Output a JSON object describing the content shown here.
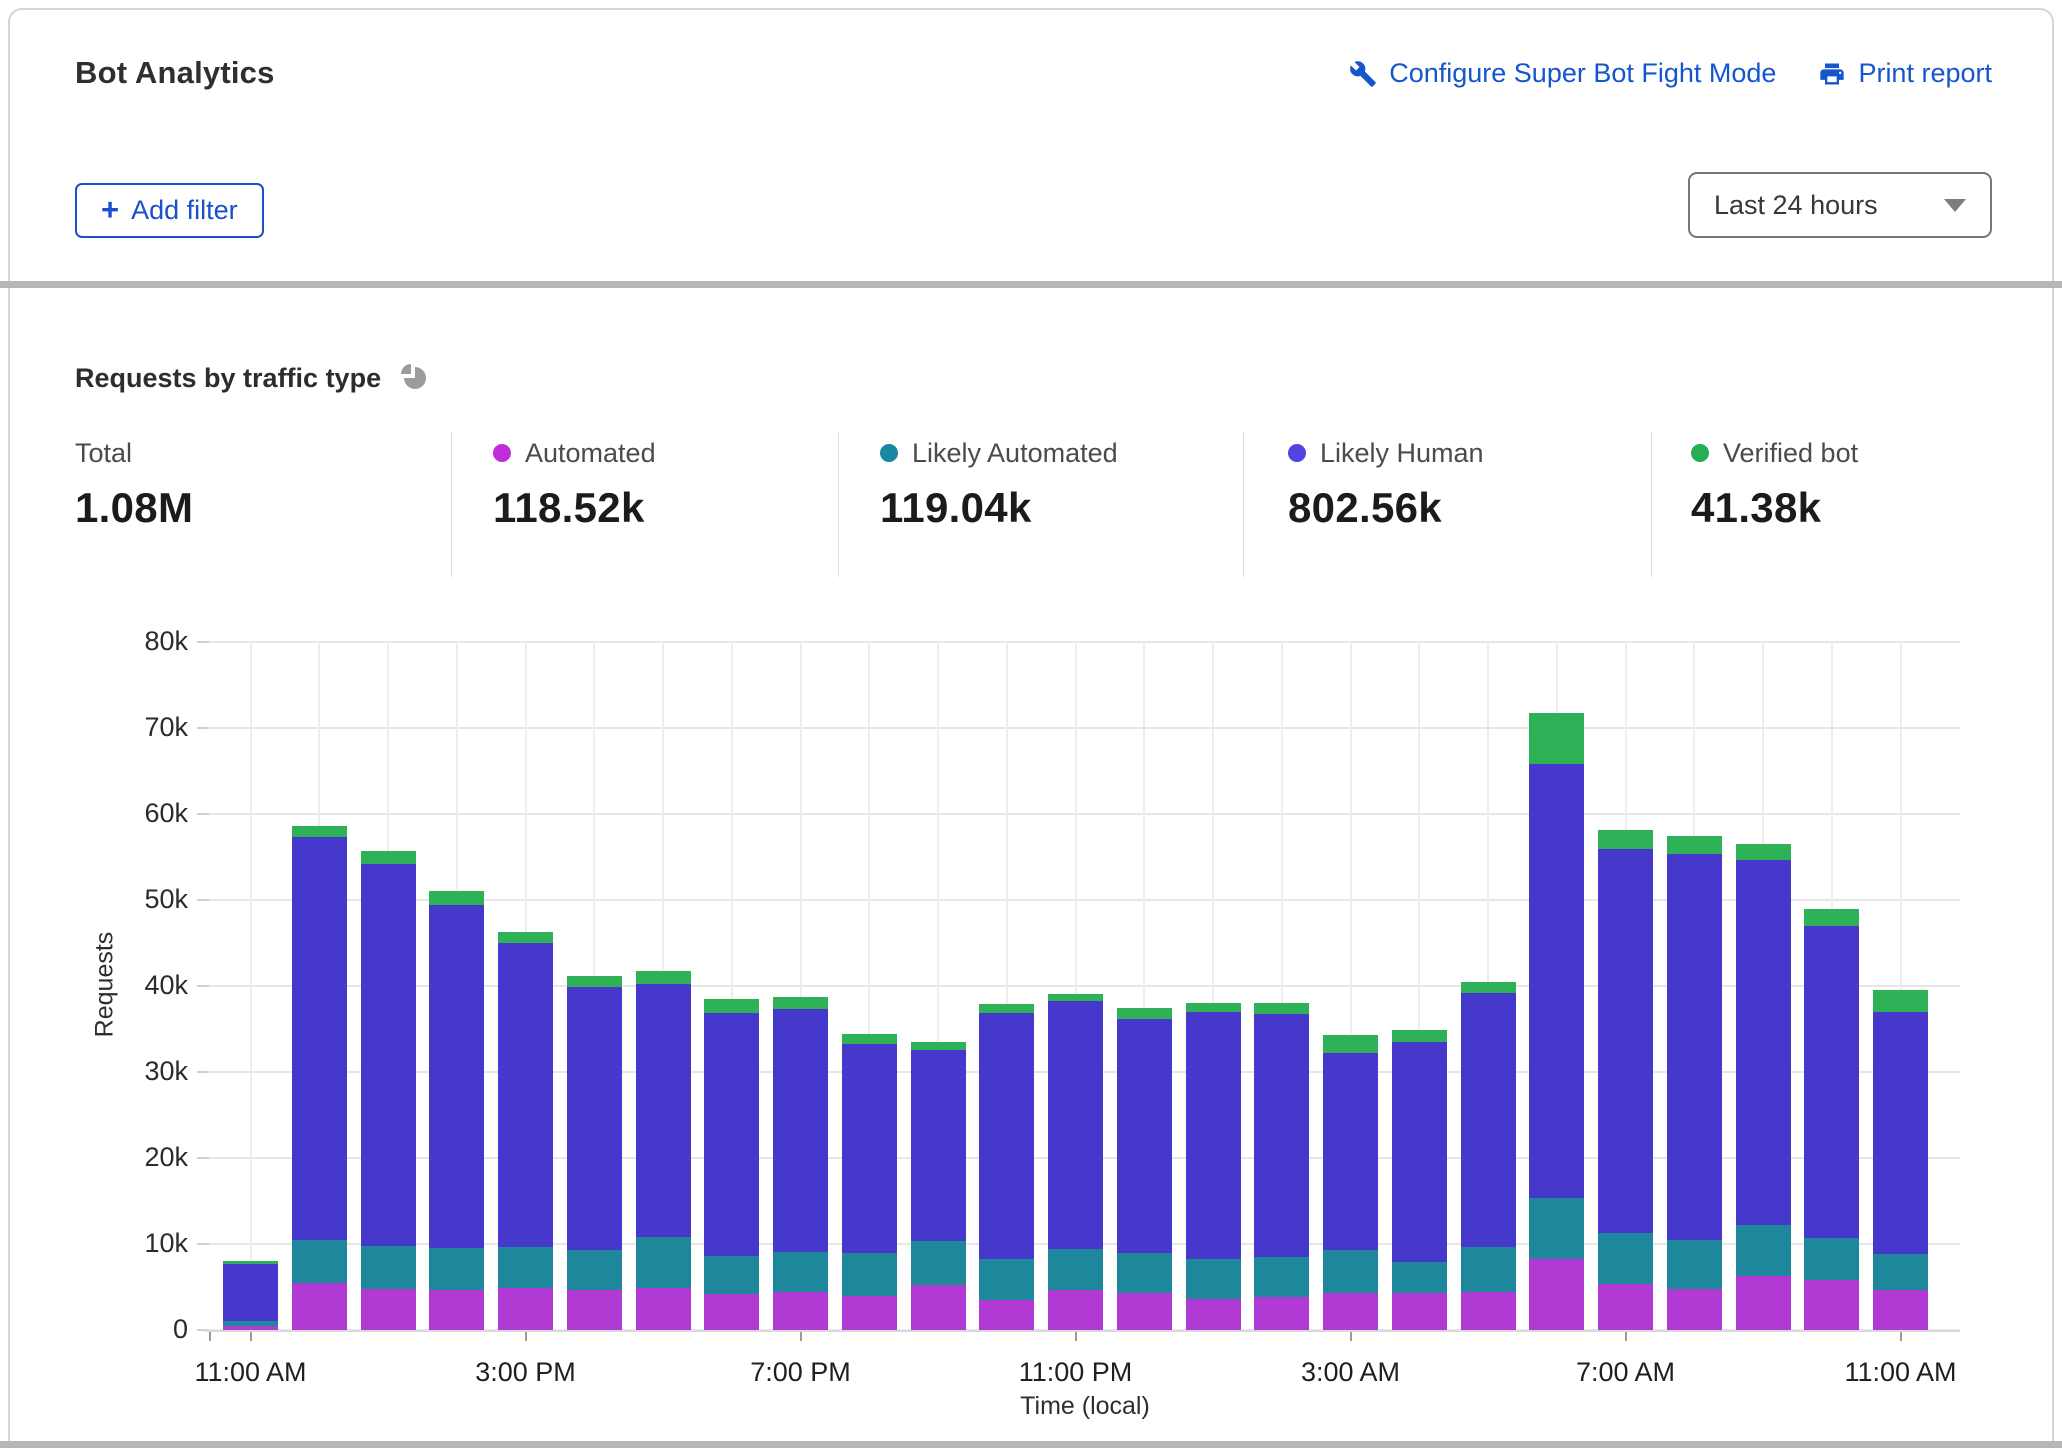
{
  "header": {
    "title": "Bot Analytics",
    "configure_link": "Configure Super Bot Fight Mode",
    "print_link": "Print report",
    "add_filter_label": "Add filter",
    "add_filter_plus": "+",
    "time_range_value": "Last 24 hours"
  },
  "section": {
    "title": "Requests by traffic type"
  },
  "stats": {
    "items": [
      {
        "label": "Total",
        "value": "1.08M",
        "color": null
      },
      {
        "label": "Automated",
        "value": "118.52k",
        "color": "#c02dd8"
      },
      {
        "label": "Likely Automated",
        "value": "119.04k",
        "color": "#1a87a0"
      },
      {
        "label": "Likely Human",
        "value": "802.56k",
        "color": "#5244e0"
      },
      {
        "label": "Verified bot",
        "value": "41.38k",
        "color": "#27ae55"
      }
    ]
  },
  "chart_data": {
    "type": "bar",
    "stacked": true,
    "title": "Requests by traffic type",
    "xlabel": "Time (local)",
    "ylabel": "Requests",
    "ylim": [
      0,
      80000
    ],
    "grid": true,
    "values_unit": "thousands of requests",
    "y_ticks": [
      {
        "label": "0",
        "value": 0
      },
      {
        "label": "10k",
        "value": 10
      },
      {
        "label": "20k",
        "value": 20
      },
      {
        "label": "30k",
        "value": 30
      },
      {
        "label": "40k",
        "value": 40
      },
      {
        "label": "50k",
        "value": 50
      },
      {
        "label": "60k",
        "value": 60
      },
      {
        "label": "70k",
        "value": 70
      },
      {
        "label": "80k",
        "value": 80
      }
    ],
    "categories": [
      "11:00 AM",
      "12:00 PM",
      "1:00 PM",
      "2:00 PM",
      "3:00 PM",
      "4:00 PM",
      "5:00 PM",
      "6:00 PM",
      "7:00 PM",
      "8:00 PM",
      "9:00 PM",
      "10:00 PM",
      "11:00 PM",
      "12:00 AM",
      "1:00 AM",
      "2:00 AM",
      "3:00 AM",
      "4:00 AM",
      "5:00 AM",
      "6:00 AM",
      "7:00 AM",
      "8:00 AM",
      "9:00 AM",
      "10:00 AM",
      "11:00 AM"
    ],
    "x_ticks": [
      {
        "index": 0,
        "label": "11:00 AM"
      },
      {
        "index": 4,
        "label": "3:00 PM"
      },
      {
        "index": 8,
        "label": "7:00 PM"
      },
      {
        "index": 12,
        "label": "11:00 PM"
      },
      {
        "index": 16,
        "label": "3:00 AM"
      },
      {
        "index": 20,
        "label": "7:00 AM"
      },
      {
        "index": 24,
        "label": "11:00 AM"
      }
    ],
    "series": [
      {
        "name": "Automated",
        "color": "#b23ad4",
        "values": [
          0.5,
          5.5,
          4.8,
          4.7,
          4.9,
          4.6,
          4.9,
          4.2,
          4.4,
          4.0,
          5.2,
          3.5,
          4.7,
          4.3,
          3.6,
          3.8,
          4.3,
          4.3,
          4.4,
          8.2,
          5.3,
          4.8,
          6.3,
          5.8,
          4.7
        ]
      },
      {
        "name": "Likely Automated",
        "color": "#1f879c",
        "values": [
          0.6,
          5.0,
          5.0,
          4.8,
          4.8,
          4.7,
          5.9,
          4.4,
          4.7,
          4.9,
          5.1,
          4.8,
          4.7,
          4.6,
          4.7,
          4.7,
          5.0,
          3.6,
          5.3,
          7.1,
          6.0,
          5.7,
          5.9,
          4.9,
          4.1
        ]
      },
      {
        "name": "Likely Human",
        "color": "#4538cb",
        "values": [
          6.6,
          46.8,
          44.4,
          39.9,
          35.3,
          30.6,
          29.4,
          28.3,
          28.2,
          24.4,
          22.3,
          28.6,
          28.9,
          27.3,
          28.7,
          28.3,
          22.9,
          25.6,
          29.5,
          50.5,
          44.6,
          44.9,
          42.4,
          36.3,
          28.2
        ]
      },
      {
        "name": "Verified bot",
        "color": "#2fb158",
        "values": [
          0.3,
          1.3,
          1.5,
          1.6,
          1.3,
          1.3,
          1.6,
          1.6,
          1.4,
          1.1,
          0.9,
          1.0,
          0.8,
          1.2,
          1.0,
          1.2,
          2.1,
          1.4,
          1.3,
          5.9,
          2.2,
          2.1,
          1.9,
          2.0,
          2.5
        ]
      }
    ]
  }
}
